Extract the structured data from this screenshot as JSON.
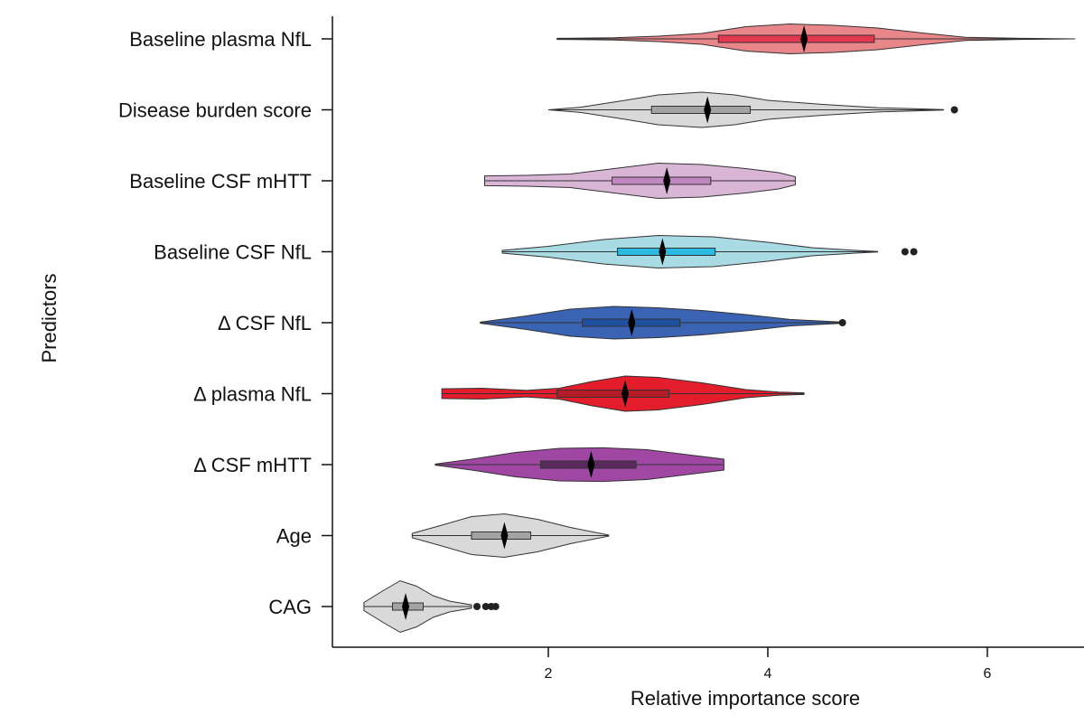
{
  "chart_data": {
    "type": "violin",
    "title": "",
    "xlabel": "Relative importance score",
    "ylabel": "Predictors",
    "xlim": [
      0,
      6.8
    ],
    "xticks": [
      "2",
      "4",
      "6"
    ],
    "grid": false,
    "legend": "none",
    "categories": [
      "Baseline plasma NfL",
      "Disease burden score",
      "Baseline CSF mHTT",
      "Baseline CSF NfL",
      "Δ CSF NfL",
      "Δ plasma NfL",
      "Δ CSF mHTT",
      "Age",
      "CAG"
    ],
    "series": [
      {
        "category": "Baseline plasma NfL",
        "color": "#e8868a",
        "box_color": "#e5364f",
        "min": 2.08,
        "q1": 3.55,
        "median": 4.33,
        "q3": 4.97,
        "max": 6.8,
        "outliers": [],
        "profile": [
          [
            2.08,
            0.02
          ],
          [
            2.6,
            0.04
          ],
          [
            3.0,
            0.1
          ],
          [
            3.4,
            0.2
          ],
          [
            3.8,
            0.45
          ],
          [
            4.2,
            0.55
          ],
          [
            4.6,
            0.5
          ],
          [
            5.0,
            0.4
          ],
          [
            5.4,
            0.22
          ],
          [
            5.8,
            0.06
          ],
          [
            6.3,
            0.02
          ],
          [
            6.8,
            0.0
          ]
        ]
      },
      {
        "category": "Disease burden score",
        "color": "#d9d9d9",
        "box_color": "#a3a3a3",
        "min": 2.0,
        "q1": 2.94,
        "median": 3.45,
        "q3": 3.84,
        "max": 5.6,
        "outliers": [
          5.7
        ],
        "profile": [
          [
            2.0,
            0.0
          ],
          [
            2.3,
            0.1
          ],
          [
            2.7,
            0.35
          ],
          [
            3.0,
            0.55
          ],
          [
            3.4,
            0.65
          ],
          [
            3.7,
            0.55
          ],
          [
            4.0,
            0.35
          ],
          [
            4.5,
            0.2
          ],
          [
            5.0,
            0.08
          ],
          [
            5.6,
            0.01
          ]
        ]
      },
      {
        "category": "Baseline CSF mHTT",
        "color": "#d9b6d6",
        "box_color": "#c287c3",
        "min": 1.42,
        "q1": 2.58,
        "median": 3.08,
        "q3": 3.48,
        "max": 4.25,
        "outliers": [],
        "profile": [
          [
            1.42,
            0.18
          ],
          [
            1.8,
            0.2
          ],
          [
            2.2,
            0.25
          ],
          [
            2.6,
            0.45
          ],
          [
            3.0,
            0.65
          ],
          [
            3.4,
            0.6
          ],
          [
            3.8,
            0.45
          ],
          [
            4.1,
            0.3
          ],
          [
            4.25,
            0.15
          ]
        ]
      },
      {
        "category": "Baseline CSF NfL",
        "color": "#a9dbe5",
        "box_color": "#2bbbe1",
        "min": 1.58,
        "q1": 2.63,
        "median": 3.04,
        "q3": 3.52,
        "max": 5.0,
        "outliers": [
          5.25,
          5.33
        ],
        "profile": [
          [
            1.58,
            0.05
          ],
          [
            2.0,
            0.2
          ],
          [
            2.5,
            0.45
          ],
          [
            3.0,
            0.6
          ],
          [
            3.5,
            0.55
          ],
          [
            4.0,
            0.35
          ],
          [
            4.4,
            0.15
          ],
          [
            4.8,
            0.05
          ],
          [
            5.0,
            0.01
          ]
        ]
      },
      {
        "category": "Δ CSF NfL",
        "color": "#3a63b4",
        "box_color": "#1f4fa1",
        "min": 1.38,
        "q1": 2.31,
        "median": 2.76,
        "q3": 3.2,
        "max": 4.68,
        "outliers": [
          4.68
        ],
        "profile": [
          [
            1.38,
            0.02
          ],
          [
            1.8,
            0.25
          ],
          [
            2.2,
            0.5
          ],
          [
            2.6,
            0.6
          ],
          [
            3.0,
            0.55
          ],
          [
            3.4,
            0.45
          ],
          [
            3.8,
            0.3
          ],
          [
            4.2,
            0.12
          ],
          [
            4.68,
            0.02
          ]
        ]
      },
      {
        "category": "Δ plasma NfL",
        "color": "#e31d2b",
        "box_color": "#b51b26",
        "min": 1.03,
        "q1": 2.08,
        "median": 2.7,
        "q3": 3.1,
        "max": 4.33,
        "outliers": [],
        "profile": [
          [
            1.03,
            0.18
          ],
          [
            1.4,
            0.2
          ],
          [
            1.8,
            0.12
          ],
          [
            2.1,
            0.2
          ],
          [
            2.4,
            0.45
          ],
          [
            2.7,
            0.65
          ],
          [
            3.0,
            0.6
          ],
          [
            3.4,
            0.4
          ],
          [
            3.8,
            0.15
          ],
          [
            4.1,
            0.06
          ],
          [
            4.33,
            0.03
          ]
        ]
      },
      {
        "category": "Δ CSF mHTT",
        "color": "#9f47a3",
        "box_color": "#5a2a5e",
        "min": 0.97,
        "q1": 1.93,
        "median": 2.39,
        "q3": 2.8,
        "max": 3.6,
        "outliers": [],
        "profile": [
          [
            0.97,
            0.02
          ],
          [
            1.3,
            0.2
          ],
          [
            1.7,
            0.45
          ],
          [
            2.1,
            0.6
          ],
          [
            2.5,
            0.62
          ],
          [
            2.9,
            0.55
          ],
          [
            3.3,
            0.35
          ],
          [
            3.6,
            0.2
          ]
        ]
      },
      {
        "category": "Age",
        "color": "#d9d9d9",
        "box_color": "#a3a3a3",
        "min": 0.76,
        "q1": 1.3,
        "median": 1.6,
        "q3": 1.84,
        "max": 2.55,
        "outliers": [],
        "profile": [
          [
            0.76,
            0.08
          ],
          [
            1.0,
            0.35
          ],
          [
            1.3,
            0.7
          ],
          [
            1.6,
            0.8
          ],
          [
            1.9,
            0.6
          ],
          [
            2.2,
            0.3
          ],
          [
            2.55,
            0.02
          ]
        ]
      },
      {
        "category": "CAG",
        "color": "#d9d9d9",
        "box_color": "#a3a3a3",
        "min": 0.32,
        "q1": 0.58,
        "median": 0.7,
        "q3": 0.86,
        "max": 1.3,
        "outliers": [
          1.35,
          1.43,
          1.48,
          1.52
        ],
        "profile": [
          [
            0.32,
            0.15
          ],
          [
            0.5,
            0.6
          ],
          [
            0.65,
            0.95
          ],
          [
            0.8,
            0.75
          ],
          [
            0.95,
            0.4
          ],
          [
            1.1,
            0.2
          ],
          [
            1.3,
            0.06
          ]
        ]
      }
    ]
  }
}
